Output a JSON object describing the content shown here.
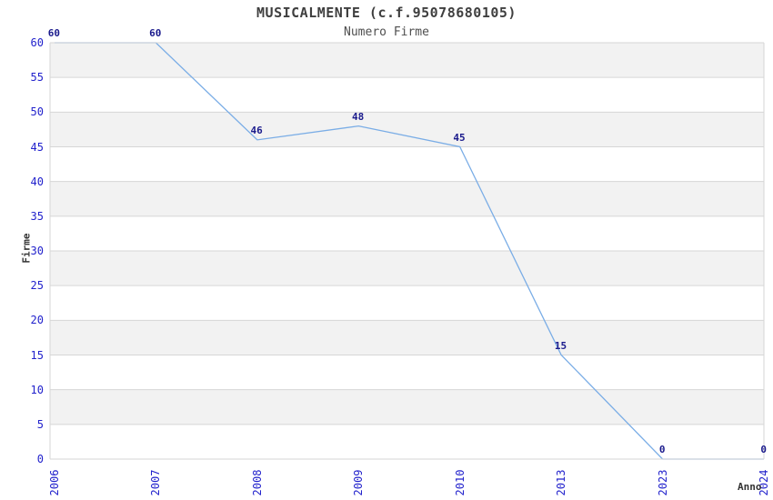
{
  "chart_data": {
    "type": "line",
    "title": "MUSICALMENTE (c.f.95078680105)",
    "subtitle": "Numero Firme",
    "xlabel": "Anno",
    "ylabel": "Firme",
    "categories": [
      "2006",
      "2007",
      "2008",
      "2009",
      "2010",
      "2013",
      "2023",
      "2024"
    ],
    "values": [
      60,
      60,
      46,
      48,
      45,
      15,
      0,
      0
    ],
    "point_labels": [
      "60",
      "60",
      "46",
      "48",
      "45",
      "15",
      "0",
      "0"
    ],
    "ylim": [
      0,
      60
    ],
    "yticks": [
      0,
      5,
      10,
      15,
      20,
      25,
      30,
      35,
      40,
      45,
      50,
      55,
      60
    ],
    "grid": "alternating horizontal bands, light gridline at every tick",
    "legend": "none",
    "colors": {
      "line": "#7aade6",
      "tick_labels": "#2222cc",
      "point_labels": "#1a1a8c",
      "band": "#f2f2f2",
      "grid_border": "#d6d6d6",
      "title": "#3f3f3f",
      "subtitle": "#4f4f4f",
      "axis_titles": "#333333",
      "background": "#ffffff"
    }
  }
}
